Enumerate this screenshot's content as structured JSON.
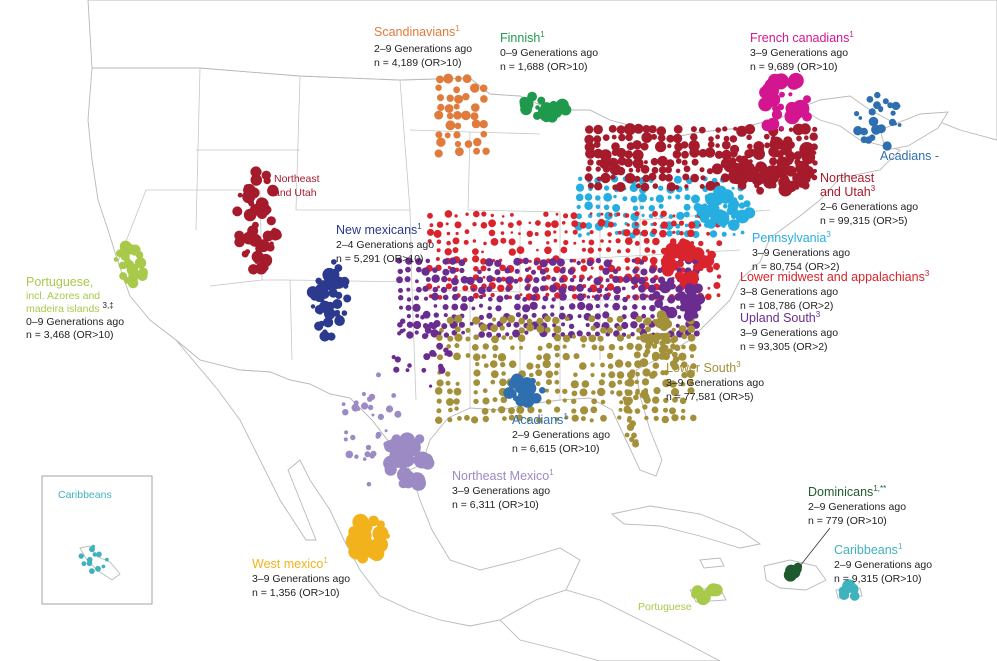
{
  "map": {
    "colors": {
      "scandinavians": "#e07b3c",
      "finnish": "#1f9a4c",
      "french_canadians": "#d3168f",
      "acadians": "#2f6fb0",
      "northeast_utah": "#a51b2b",
      "new_mexicans": "#2b3a8f",
      "pennsylvania": "#27aee0",
      "lower_midwest": "#d9242d",
      "upland_south": "#6a2c8f",
      "lower_south": "#a3903a",
      "portuguese": "#a8c94a",
      "northeast_mexico": "#9b8ac4",
      "west_mexico": "#f2b21c",
      "dominicans": "#1f5a2e",
      "caribbeans": "#3fb3bd"
    },
    "labels": {
      "scandinavians": {
        "title": "Scandinavians",
        "sup": "1",
        "gen": "2–9 Generations ago",
        "n": "n = 4,189 (OR>10)"
      },
      "finnish": {
        "title": "Finnish",
        "sup": "1",
        "gen": "0–9 Generations ago",
        "n": "n = 1,688 (OR>10)"
      },
      "french_canadians": {
        "title": "French canadians",
        "sup": "1",
        "gen": "3–9 Generations ago",
        "n": "n = 9,689 (OR>10)"
      },
      "acadians_north": {
        "title": "Acadians -"
      },
      "northeast_utah_map": {
        "line1": "Northeast",
        "line2": "and Utah"
      },
      "northeast_utah": {
        "title1": "Northeast",
        "title2": "and Utah",
        "sup": "3",
        "gen": "2–6 Generations ago",
        "n": "n = 99,315 (OR>5)"
      },
      "new_mexicans": {
        "title": "New mexicans",
        "sup": "1",
        "gen": "2–4 Generations ago",
        "n": "n = 5,291 (OR>10)"
      },
      "pennsylvania": {
        "title": "Pennsylvania",
        "sup": "3",
        "gen": "3–9 Generations ago",
        "n": "n = 80,754 (OR>2)"
      },
      "lower_midwest": {
        "title": "Lower midwest and appalachians",
        "sup": "3",
        "gen": "3–8 Generations ago",
        "n": "n = 108,786 (OR>2)"
      },
      "upland_south": {
        "title": "Upland South",
        "sup": "3",
        "gen": "3–9 Generations ago",
        "n": "n = 93,305 (OR>2)"
      },
      "lower_south": {
        "title": "Lower South",
        "sup": "3",
        "gen": "3–9 Generations ago",
        "n": "n = 77,581 (OR>5)"
      },
      "portuguese": {
        "title1": "Portuguese,",
        "line2": "incl. Azores and",
        "line3": "madeira islands",
        "sup": "3,‡",
        "gen": "0–9 Generations ago",
        "n": "n = 3,468 (OR>10)"
      },
      "acadians_south": {
        "title": "Acadians",
        "sup": "1",
        "gen": "2–9 Generations ago",
        "n": "n = 6,615 (OR>10)"
      },
      "northeast_mexico": {
        "title": "Northeast Mexico",
        "sup": "1",
        "gen": "3–9 Generations ago",
        "n": "n = 6,311 (OR>10)"
      },
      "west_mexico": {
        "title": "West mexico",
        "sup": "1",
        "gen": "3–9 Generations ago",
        "n": "n = 1,356 (OR>10)"
      },
      "dominicans": {
        "title": "Dominicans",
        "sup": "1,**",
        "gen": "2–9 Generations ago",
        "n": "n = 779 (OR>10)"
      },
      "caribbeans": {
        "title": "Caribbeans",
        "sup": "1",
        "gen": "2–9 Generations ago",
        "n": "n = 9,315 (OR>10)"
      },
      "caribbeans_inset": {
        "title": "Caribbeans"
      },
      "portuguese_island": {
        "title": "Portuguese"
      }
    }
  }
}
